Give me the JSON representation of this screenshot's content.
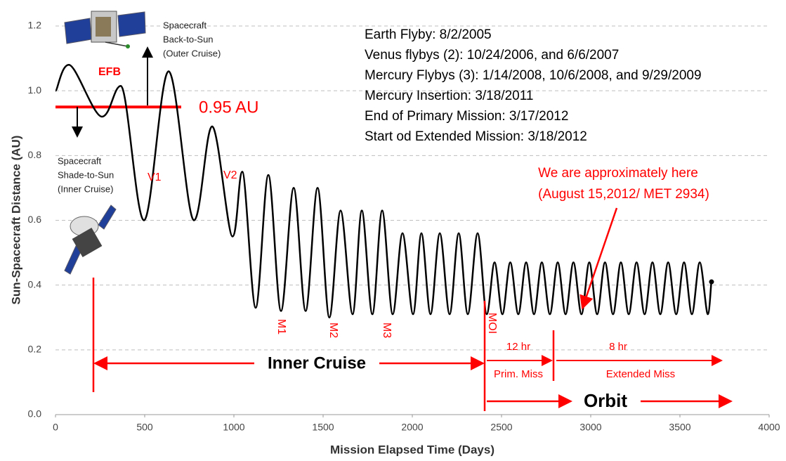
{
  "chart_data": {
    "type": "line",
    "x_label": "Mission Elapsed Time (Days)",
    "y_label": "Sun-Spacecraft Distance (AU)",
    "xlim": [
      0,
      4000
    ],
    "xticks": [
      0,
      500,
      1000,
      1500,
      2000,
      2500,
      3000,
      3500,
      4000
    ],
    "ylim": [
      0,
      1.2
    ],
    "yticks": [
      {
        "value": 0,
        "label": "0.0"
      },
      0.2,
      0.4,
      0.6,
      0.8,
      {
        "value": 1,
        "label": "1.0"
      },
      1.2
    ],
    "grid": true,
    "series": [
      {
        "color": "#000000",
        "x": [
          0,
          75,
          260,
          366,
          496,
          634,
          776,
          878,
          992,
          1047,
          1122,
          1193,
          1264,
          1335,
          1402,
          1469,
          1535,
          1598,
          1665,
          1717,
          1776,
          1831,
          1890,
          1945,
          2004,
          2051,
          2102,
          2154,
          2209,
          2260,
          2311,
          2366,
          2417,
          2461,
          2505,
          2549,
          2594,
          2638,
          2682,
          2726,
          2771,
          2815,
          2859,
          2903,
          2948,
          2992,
          3036,
          3080,
          3125,
          3169,
          3213,
          3257,
          3302,
          3346,
          3390,
          3434,
          3479,
          3523,
          3567,
          3611,
          3656,
          3677
        ],
        "values": [
          1.0,
          1.08,
          0.92,
          1.015,
          0.6,
          1.06,
          0.6,
          0.89,
          0.55,
          0.75,
          0.33,
          0.74,
          0.32,
          0.7,
          0.32,
          0.7,
          0.3,
          0.63,
          0.31,
          0.63,
          0.31,
          0.63,
          0.31,
          0.56,
          0.31,
          0.56,
          0.31,
          0.56,
          0.31,
          0.56,
          0.31,
          0.56,
          0.31,
          0.47,
          0.31,
          0.47,
          0.31,
          0.47,
          0.31,
          0.47,
          0.31,
          0.47,
          0.31,
          0.47,
          0.31,
          0.47,
          0.31,
          0.47,
          0.31,
          0.47,
          0.31,
          0.47,
          0.31,
          0.47,
          0.31,
          0.47,
          0.31,
          0.47,
          0.31,
          0.47,
          0.31,
          0.41
        ]
      }
    ],
    "threshold": {
      "value": 0.95,
      "label": "0.95 AU",
      "color": "#ff0000"
    },
    "annotations": {
      "efb": "EFB",
      "outer_cruise": [
        "Spacecraft",
        "Back-to-Sun",
        "(Outer Cruise)"
      ],
      "inner_cruise_note": [
        "Spacecraft",
        "Shade-to-Sun",
        "(Inner Cruise)"
      ],
      "events": [
        "Earth Flyby: 8/2/2005",
        "Venus flybys (2): 10/24/2006, and 6/6/2007",
        "Mercury Flybys (3): 1/14/2008, 10/6/2008, and 9/29/2009",
        "Mercury Insertion: 3/18/2011",
        "End of Primary Mission: 3/17/2012",
        "Start od Extended Mission: 3/18/2012"
      ],
      "flybys": [
        "V1",
        "V2",
        "M1",
        "M2",
        "M3",
        "MOI"
      ],
      "here": [
        "We are approximately here",
        "(August 15,2012/ MET 2934)"
      ],
      "inner_cruise": "Inner Cruise",
      "primary_period": "12 hr",
      "extended_period": "8 hr",
      "primary": "Prim. Miss",
      "extended": "Extended Miss",
      "orbit": "Orbit"
    }
  }
}
